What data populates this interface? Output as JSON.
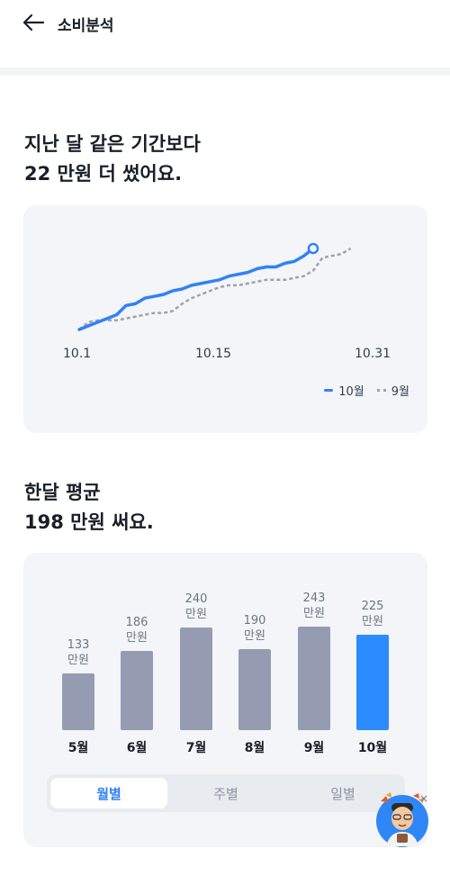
{
  "header": {
    "title": "소비분석"
  },
  "comparison": {
    "line1": "지난 달 같은 기간보다",
    "line2": "22 만원 더 썼어요."
  },
  "line_chart": {
    "x_labels": [
      "10.1",
      "10.15",
      "10.31"
    ],
    "legend": [
      {
        "label": "10월",
        "color": "#3182f6",
        "style": "solid"
      },
      {
        "label": "9월",
        "color": "#9ea3ab",
        "style": "dashed"
      }
    ]
  },
  "average": {
    "line1": "한달 평균",
    "line2": "198 만원 써요."
  },
  "bar_chart": {
    "unit": "만원",
    "bars": [
      {
        "month": "5월",
        "value": "133"
      },
      {
        "month": "6월",
        "value": "186"
      },
      {
        "month": "7월",
        "value": "240"
      },
      {
        "month": "8월",
        "value": "190"
      },
      {
        "month": "9월",
        "value": "243"
      },
      {
        "month": "10월",
        "value": "225"
      }
    ],
    "bar_color": "#959cb1",
    "active_color": "#2c8cff"
  },
  "segments": {
    "monthly": "월별",
    "weekly": "주별",
    "daily": "일별",
    "selected": "월별"
  },
  "floating": {
    "close_symbol": "×"
  },
  "chart_data": [
    {
      "type": "line",
      "x_tick_labels": [
        "10.1",
        "10.15",
        "10.31"
      ],
      "series": [
        {
          "name": "10월",
          "x": [
            1,
            2,
            3,
            4,
            5,
            6,
            7,
            8,
            9,
            10,
            11,
            12,
            13,
            14,
            15,
            16,
            17,
            18,
            19,
            20,
            21,
            22,
            23,
            24,
            25,
            26
          ],
          "values": [
            0,
            2,
            4,
            6,
            8,
            13,
            14,
            17,
            18,
            19,
            21,
            22,
            24,
            25,
            26,
            27,
            29,
            30,
            31,
            33,
            34,
            34,
            36,
            37,
            40,
            44
          ]
        },
        {
          "name": "9월",
          "x": [
            1,
            2,
            3,
            4,
            5,
            6,
            7,
            8,
            9,
            10,
            11,
            12,
            13,
            14,
            15,
            16,
            17,
            18,
            19,
            20,
            21,
            22,
            23,
            24,
            25,
            26,
            27,
            28,
            29,
            30
          ],
          "values": [
            0,
            4,
            5,
            5,
            5,
            6,
            7,
            8,
            9,
            9,
            10,
            14,
            17,
            19,
            21,
            23,
            24,
            24,
            25,
            26,
            27,
            27,
            27,
            28,
            29,
            32,
            39,
            40,
            41,
            44
          ]
        }
      ]
    },
    {
      "type": "bar",
      "categories": [
        "5월",
        "6월",
        "7월",
        "8월",
        "9월",
        "10월"
      ],
      "values": [
        133,
        186,
        240,
        190,
        243,
        225
      ],
      "unit": "만원"
    }
  ]
}
